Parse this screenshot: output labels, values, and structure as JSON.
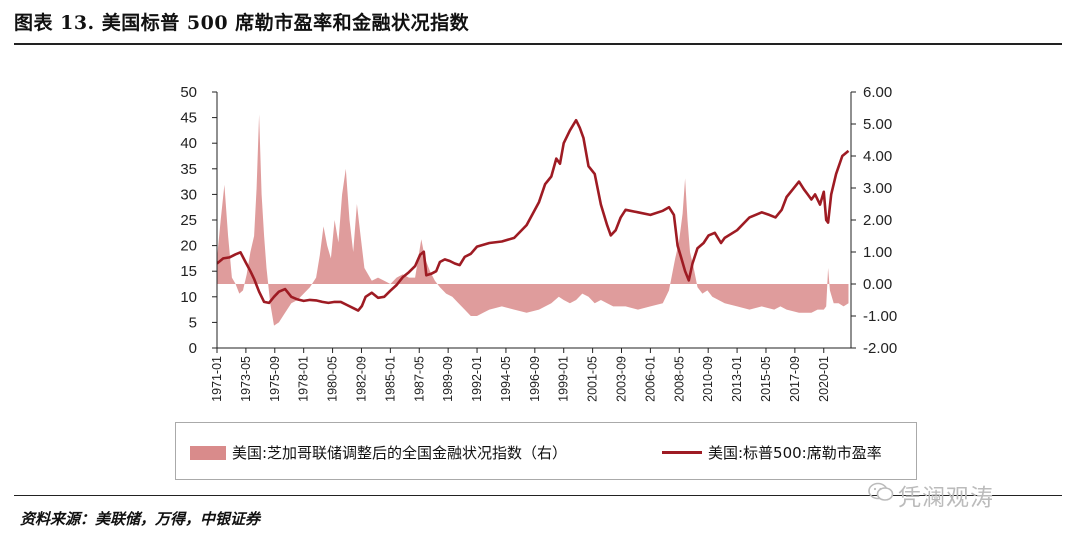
{
  "figure": {
    "title": "图表 13. 美国标普 500 席勒市盈率和金融状况指数",
    "source": "资料来源：美联储，万得，中银证券",
    "watermark": "凭澜观涛"
  },
  "colors": {
    "area": "#d98b8b",
    "line": "#9e1b23",
    "axis": "#222222"
  },
  "icons": {
    "watermark": "wechat-icon"
  },
  "chart_data": {
    "type": "line",
    "title": "",
    "left_axis": {
      "ticks": [
        "0",
        "5",
        "10",
        "15",
        "20",
        "25",
        "30",
        "35",
        "40",
        "45",
        "50"
      ],
      "ylim": [
        0,
        50
      ]
    },
    "right_axis": {
      "ticks": [
        "-2.00",
        "-1.00",
        "0.00",
        "1.00",
        "2.00",
        "3.00",
        "4.00",
        "5.00",
        "6.00"
      ],
      "ylim": [
        -2,
        6
      ]
    },
    "x_ticks": [
      "1971-01",
      "1973-05",
      "1975-09",
      "1978-01",
      "1980-05",
      "1982-09",
      "1985-01",
      "1987-05",
      "1989-09",
      "1992-01",
      "1994-05",
      "1996-09",
      "1999-01",
      "2001-05",
      "2003-09",
      "2006-01",
      "2008-05",
      "2010-09",
      "2013-01",
      "2015-05",
      "2017-09",
      "2020-01"
    ],
    "xlim": [
      1971.0,
      2022.2
    ],
    "legend": {
      "placement": "bottom"
    },
    "series": [
      {
        "name": "美国:芝加哥联储调整后的全国金融状况指数（右）",
        "type": "area",
        "axis": "right",
        "x": [
          1971.0,
          1971.3,
          1971.6,
          1971.9,
          1972.2,
          1972.5,
          1972.8,
          1973.1,
          1973.4,
          1973.7,
          1974.0,
          1974.2,
          1974.4,
          1974.6,
          1974.8,
          1975.0,
          1975.3,
          1975.6,
          1976.0,
          1976.5,
          1977.0,
          1977.5,
          1978.0,
          1978.5,
          1979.0,
          1979.3,
          1979.6,
          1979.9,
          1980.2,
          1980.5,
          1980.8,
          1981.1,
          1981.4,
          1981.7,
          1982.0,
          1982.3,
          1982.6,
          1982.9,
          1983.2,
          1983.5,
          1984.0,
          1984.5,
          1985.0,
          1985.5,
          1986.0,
          1986.5,
          1987.0,
          1987.5,
          1987.8,
          1988.2,
          1988.6,
          1989.0,
          1989.5,
          1990.0,
          1990.5,
          1991.0,
          1991.5,
          1992.0,
          1992.5,
          1993.0,
          1994.0,
          1995.0,
          1996.0,
          1997.0,
          1998.0,
          1998.6,
          1999.0,
          1999.5,
          2000.0,
          2000.5,
          2001.0,
          2001.5,
          2002.0,
          2002.5,
          2003.0,
          2004.0,
          2005.0,
          2006.0,
          2007.0,
          2007.5,
          2007.8,
          2008.0,
          2008.3,
          2008.6,
          2008.8,
          2009.0,
          2009.2,
          2009.5,
          2009.8,
          2010.2,
          2010.6,
          2011.0,
          2011.5,
          2012.0,
          2013.0,
          2014.0,
          2015.0,
          2016.0,
          2016.5,
          2017.0,
          2018.0,
          2019.0,
          2019.5,
          2020.0,
          2020.2,
          2020.35,
          2020.5,
          2020.8,
          2021.2,
          2021.6,
          2022.0
        ],
        "values": [
          0.8,
          2.0,
          3.1,
          1.5,
          0.2,
          0.0,
          -0.3,
          -0.2,
          0.3,
          1.0,
          1.5,
          3.0,
          5.3,
          2.8,
          1.5,
          0.5,
          -0.6,
          -1.3,
          -1.2,
          -0.9,
          -0.6,
          -0.5,
          -0.3,
          -0.1,
          0.2,
          0.9,
          1.8,
          1.2,
          0.8,
          2.0,
          1.3,
          2.8,
          3.6,
          2.0,
          1.0,
          2.5,
          1.5,
          0.5,
          0.3,
          0.1,
          0.2,
          0.1,
          0.0,
          0.2,
          0.3,
          0.2,
          0.2,
          1.4,
          0.8,
          0.4,
          0.1,
          -0.1,
          -0.3,
          -0.4,
          -0.6,
          -0.8,
          -1.0,
          -1.0,
          -0.9,
          -0.8,
          -0.7,
          -0.8,
          -0.9,
          -0.8,
          -0.6,
          -0.4,
          -0.5,
          -0.6,
          -0.5,
          -0.3,
          -0.4,
          -0.6,
          -0.5,
          -0.6,
          -0.7,
          -0.7,
          -0.8,
          -0.7,
          -0.6,
          -0.2,
          0.4,
          0.8,
          1.3,
          2.2,
          3.3,
          2.0,
          1.0,
          0.5,
          -0.1,
          -0.3,
          -0.2,
          -0.4,
          -0.5,
          -0.6,
          -0.7,
          -0.8,
          -0.7,
          -0.8,
          -0.7,
          -0.8,
          -0.9,
          -0.9,
          -0.8,
          -0.8,
          -0.7,
          0.5,
          -0.2,
          -0.6,
          -0.6,
          -0.7,
          -0.6
        ]
      },
      {
        "name": "美国:标普500:席勒市盈率",
        "type": "line",
        "axis": "left",
        "x": [
          1971.0,
          1971.5,
          1972.0,
          1972.5,
          1972.9,
          1973.3,
          1973.7,
          1974.0,
          1974.4,
          1974.8,
          1975.2,
          1975.6,
          1976.0,
          1976.5,
          1977.0,
          1977.5,
          1978.0,
          1978.5,
          1979.0,
          1979.5,
          1980.0,
          1980.5,
          1981.0,
          1981.5,
          1982.0,
          1982.4,
          1982.7,
          1983.0,
          1983.5,
          1984.0,
          1984.5,
          1985.0,
          1985.5,
          1986.0,
          1986.5,
          1987.0,
          1987.4,
          1987.7,
          1987.9,
          1988.3,
          1988.7,
          1989.0,
          1989.4,
          1989.8,
          1990.2,
          1990.6,
          1991.0,
          1991.5,
          1992.0,
          1993.0,
          1994.0,
          1995.0,
          1996.0,
          1997.0,
          1997.5,
          1998.0,
          1998.4,
          1998.7,
          1999.0,
          1999.5,
          2000.0,
          2000.3,
          2000.6,
          2001.0,
          2001.5,
          2002.0,
          2002.5,
          2002.8,
          2003.2,
          2003.6,
          2004.0,
          2005.0,
          2006.0,
          2007.0,
          2007.5,
          2007.9,
          2008.2,
          2008.5,
          2008.8,
          2009.1,
          2009.4,
          2009.8,
          2010.3,
          2010.7,
          2011.2,
          2011.7,
          2012.0,
          2013.0,
          2014.0,
          2015.0,
          2015.6,
          2016.1,
          2016.6,
          2017.0,
          2017.5,
          2018.0,
          2018.4,
          2018.7,
          2019.0,
          2019.3,
          2019.7,
          2020.0,
          2020.2,
          2020.35,
          2020.6,
          2021.0,
          2021.5,
          2022.0
        ],
        "values": [
          16.5,
          17.5,
          17.7,
          18.3,
          18.7,
          16.8,
          15.0,
          13.5,
          11.0,
          9.0,
          8.8,
          10.0,
          11.0,
          11.5,
          10.0,
          9.5,
          9.2,
          9.4,
          9.3,
          9.0,
          8.8,
          9.0,
          9.0,
          8.4,
          7.8,
          7.3,
          8.2,
          10.0,
          10.8,
          9.8,
          10.0,
          11.2,
          12.3,
          13.8,
          14.8,
          16.0,
          18.2,
          18.8,
          14.2,
          14.5,
          15.0,
          16.8,
          17.3,
          17.0,
          16.5,
          16.2,
          17.8,
          18.4,
          19.8,
          20.5,
          20.8,
          21.5,
          24.0,
          28.5,
          32.0,
          33.5,
          37.0,
          36.0,
          40.0,
          42.5,
          44.5,
          43.0,
          41.0,
          35.5,
          34.0,
          28.0,
          24.0,
          22.0,
          23.0,
          25.5,
          27.0,
          26.5,
          26.0,
          26.8,
          27.5,
          26.0,
          20.0,
          17.5,
          15.0,
          13.2,
          16.5,
          19.5,
          20.5,
          22.0,
          22.5,
          20.5,
          21.5,
          23.0,
          25.5,
          26.5,
          26.0,
          25.5,
          27.0,
          29.5,
          31.0,
          32.5,
          31.0,
          30.0,
          29.0,
          30.0,
          28.0,
          30.5,
          25.0,
          24.5,
          30.0,
          34.0,
          37.5,
          38.5
        ]
      }
    ]
  }
}
